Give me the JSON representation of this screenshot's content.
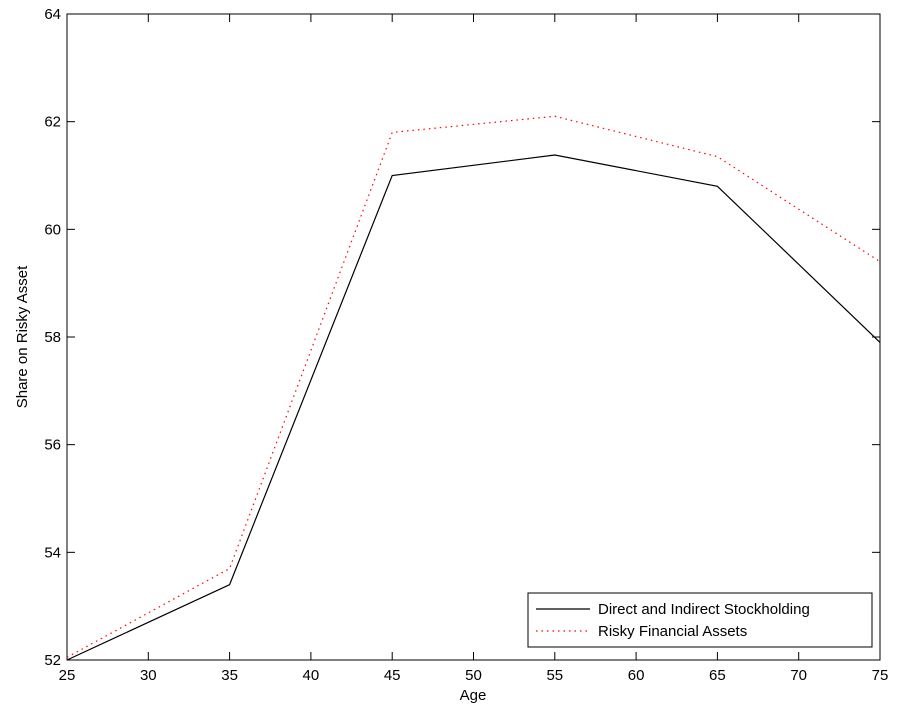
{
  "chart_data": {
    "type": "line",
    "x_label": "Age",
    "y_label": "Share on Risky Asset",
    "x": [
      25,
      35,
      45,
      55,
      65,
      75
    ],
    "series": [
      {
        "name": "Direct and Indirect Stockholding",
        "color": "#000000",
        "linestyle": "solid",
        "values": [
          52,
          53.4,
          61,
          61.38,
          60.8,
          57.9
        ]
      },
      {
        "name": "Risky Financial Assets",
        "color": "#ff0000",
        "linestyle": "dotted",
        "values": [
          52.05,
          53.7,
          61.8,
          62.1,
          61.35,
          59.4
        ]
      }
    ],
    "xlim": [
      25,
      75
    ],
    "xticks": [
      25,
      30,
      35,
      40,
      45,
      50,
      55,
      60,
      65,
      70,
      75
    ],
    "ylim": [
      52,
      64
    ],
    "yticks": [
      52,
      54,
      56,
      58,
      60,
      62,
      64
    ],
    "grid": false,
    "legend": "lower right"
  }
}
